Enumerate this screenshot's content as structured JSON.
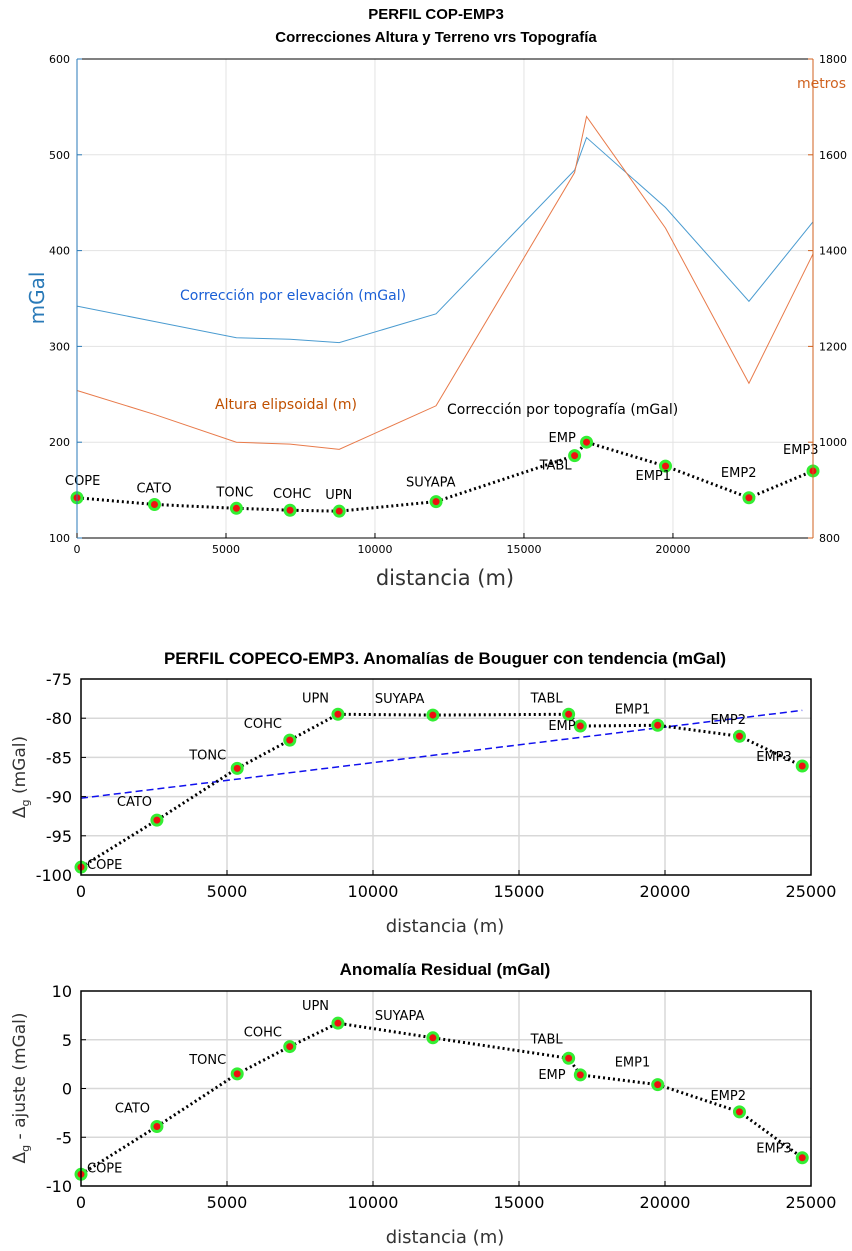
{
  "colors": {
    "left_axis": "#2a7ab8",
    "right_axis": "#d0621f",
    "elevation_line": "#4a9bd0",
    "height_line": "#e87a4a",
    "elevation_label": "#1a5fd6",
    "height_label": "#c05000",
    "marker_fill": "#ee1111",
    "marker_ring": "#33ee33",
    "trend": "#1010ee"
  },
  "chart_data": [
    {
      "type": "line",
      "title": "PERFIL COP-EMP3",
      "subtitle": "Correcciones Altura y Terreno vrs Topografía",
      "xlabel": "distancia (m)",
      "ylabel": "mGal",
      "y2label": "metros",
      "xlim": [
        0,
        24700
      ],
      "ylim": [
        100,
        600
      ],
      "y2lim": [
        800,
        1800
      ],
      "grid": true,
      "x_ticks": [
        0,
        5000,
        10000,
        15000,
        20000
      ],
      "x_tick_labels": [
        "0",
        "5000",
        "10000",
        "15000",
        "20000"
      ],
      "y_ticks": [
        100,
        200,
        300,
        400,
        500,
        600
      ],
      "y_tick_labels": [
        "100",
        "200",
        "300",
        "400",
        "500",
        "600"
      ],
      "y2_ticks": [
        800,
        1000,
        1200,
        1400,
        1600,
        1800
      ],
      "y2_tick_labels": [
        "800",
        "1000",
        "1200",
        "1400",
        "1600",
        "1800"
      ],
      "annotations": {
        "elevation": "Corrección por elevación (mGal)",
        "height": "Altura elipsoidal (m)",
        "topography": "Corrección por topografía (mGal)"
      },
      "stations": [
        "COPE",
        "CATO",
        "TONC",
        "COHC",
        "UPN",
        "SUYAPA",
        "TABL",
        "EMP",
        "EMP1",
        "EMP2",
        "EMP3"
      ],
      "x": [
        0,
        2600,
        5350,
        7150,
        8800,
        12050,
        16700,
        17100,
        19750,
        22550,
        24700
      ],
      "series": [
        {
          "key": "elevation",
          "axis": "left",
          "values": [
            342,
            326,
            309,
            307.5,
            304,
            334,
            484,
            518,
            445,
            347,
            430
          ]
        },
        {
          "key": "height",
          "axis": "right",
          "values": [
            1108,
            1058,
            1000,
            996,
            985,
            1076,
            1563,
            1680,
            1447,
            1123,
            1393
          ]
        },
        {
          "key": "topography",
          "axis": "left",
          "values": [
            142,
            135,
            131,
            129,
            128,
            138,
            186,
            200,
            175,
            142,
            170
          ]
        }
      ]
    },
    {
      "type": "line",
      "title": "PERFIL COPECO-EMP3. Anomalías de Bouguer con tendencia (mGal)",
      "xlabel": "distancia (m)",
      "ylabel": "Δg (mGal)",
      "ylabel_main": "Δ",
      "ylabel_sub": "g",
      "ylabel_rest": " (mGal)",
      "xlim": [
        0,
        25000
      ],
      "ylim": [
        -100,
        -75
      ],
      "grid": true,
      "x_ticks": [
        0,
        5000,
        10000,
        15000,
        20000,
        25000
      ],
      "x_tick_labels": [
        "0",
        "5000",
        "10000",
        "15000",
        "20000",
        "25000"
      ],
      "y_ticks": [
        -100,
        -95,
        -90,
        -85,
        -80,
        -75
      ],
      "y_tick_labels": [
        "-100",
        "-95",
        "-90",
        "-85",
        "-80",
        "-75"
      ],
      "stations": [
        "COPE",
        "CATO",
        "TONC",
        "COHC",
        "UPN",
        "SUYAPA",
        "TABL",
        "EMP",
        "EMP1",
        "EMP2",
        "EMP3"
      ],
      "x": [
        0,
        2600,
        5350,
        7150,
        8800,
        12050,
        16700,
        17100,
        19750,
        22550,
        24700
      ],
      "values": [
        -99,
        -93,
        -86.4,
        -82.8,
        -79.5,
        -79.6,
        -79.5,
        -81,
        -80.9,
        -82.3,
        -86.1
      ],
      "trend": {
        "x": [
          0,
          24700
        ],
        "y": [
          -90.2,
          -79
        ]
      }
    },
    {
      "type": "line",
      "title": "Anomalía Residual (mGal)",
      "xlabel": "distancia (m)",
      "ylabel": "Δg - ajuste (mGal)",
      "ylabel_main": "Δ",
      "ylabel_sub": "g",
      "ylabel_rest": " - ajuste (mGal)",
      "xlim": [
        0,
        25000
      ],
      "ylim": [
        -10,
        10
      ],
      "grid": true,
      "x_ticks": [
        0,
        5000,
        10000,
        15000,
        20000,
        25000
      ],
      "x_tick_labels": [
        "0",
        "5000",
        "10000",
        "15000",
        "20000",
        "25000"
      ],
      "y_ticks": [
        -10,
        -5,
        0,
        5,
        10
      ],
      "y_tick_labels": [
        "-10",
        "-5",
        "0",
        "5",
        "10"
      ],
      "stations": [
        "COPE",
        "CATO",
        "TONC",
        "COHC",
        "UPN",
        "SUYAPA",
        "TABL",
        "EMP",
        "EMP1",
        "EMP2",
        "EMP3"
      ],
      "x": [
        0,
        2600,
        5350,
        7150,
        8800,
        12050,
        16700,
        17100,
        19750,
        22550,
        24700
      ],
      "values": [
        -8.8,
        -3.9,
        1.5,
        4.3,
        6.7,
        5.2,
        3.1,
        1.4,
        0.4,
        -2.4,
        -7.1
      ]
    }
  ]
}
